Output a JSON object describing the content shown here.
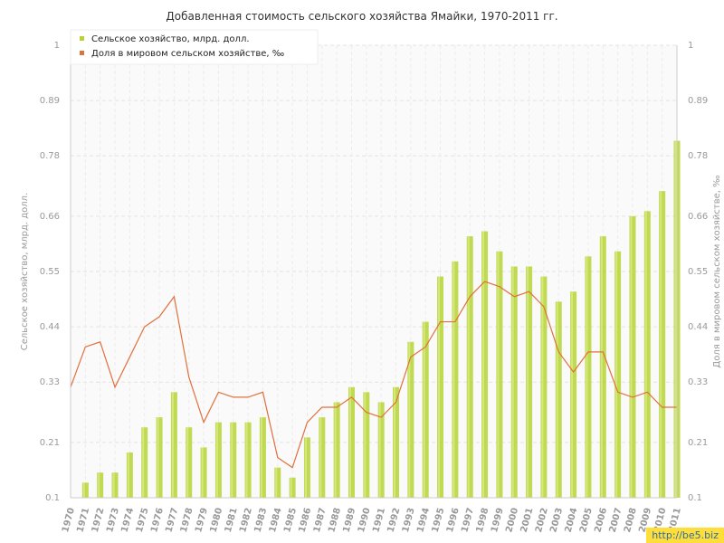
{
  "chart_data": {
    "type": "bar",
    "title": "Добавленная стоимость сельского хозяйства Ямайки, 1970-2011 гг.",
    "ylabel_left": "Сельское хозяйство, млрд. долл.",
    "ylabel_right": "Доля в мировом сельском хозяйстве, ‰",
    "ylim": [
      0.1,
      1
    ],
    "yticks": [
      "0.1",
      "0.21",
      "0.33",
      "0.44",
      "0.55",
      "0.66",
      "0.78",
      "0.89",
      "1"
    ],
    "legend_position": "top-left",
    "grid": true,
    "categories": [
      "1970",
      "1971",
      "1972",
      "1973",
      "1974",
      "1975",
      "1976",
      "1977",
      "1978",
      "1979",
      "1980",
      "1981",
      "1982",
      "1983",
      "1984",
      "1985",
      "1986",
      "1987",
      "1988",
      "1989",
      "1990",
      "1991",
      "1992",
      "1993",
      "1994",
      "1995",
      "1996",
      "1997",
      "1998",
      "1999",
      "2000",
      "2001",
      "2002",
      "2003",
      "2004",
      "2005",
      "2006",
      "2007",
      "2008",
      "2009",
      "2010",
      "2011"
    ],
    "series": [
      {
        "name": "Сельское хозяйство, млрд. долл.",
        "type": "bar",
        "color": "#b5d334",
        "values": [
          0.1,
          0.13,
          0.15,
          0.15,
          0.19,
          0.24,
          0.26,
          0.31,
          0.24,
          0.2,
          0.25,
          0.25,
          0.25,
          0.26,
          0.16,
          0.14,
          0.22,
          0.26,
          0.29,
          0.32,
          0.31,
          0.29,
          0.32,
          0.41,
          0.45,
          0.54,
          0.57,
          0.62,
          0.63,
          0.59,
          0.56,
          0.56,
          0.54,
          0.49,
          0.51,
          0.58,
          0.62,
          0.59,
          0.66,
          0.67,
          0.71,
          0.81
        ]
      },
      {
        "name": "Доля в мировом сельском хозяйстве, ‰",
        "type": "line",
        "color": "#e0703c",
        "values": [
          0.32,
          0.4,
          0.41,
          0.32,
          0.38,
          0.44,
          0.46,
          0.5,
          0.34,
          0.25,
          0.31,
          0.3,
          0.3,
          0.31,
          0.18,
          0.16,
          0.25,
          0.28,
          0.28,
          0.3,
          0.27,
          0.26,
          0.29,
          0.38,
          0.4,
          0.45,
          0.45,
          0.5,
          0.53,
          0.52,
          0.5,
          0.51,
          0.48,
          0.39,
          0.35,
          0.39,
          0.39,
          0.31,
          0.3,
          0.31,
          0.28,
          0.28
        ]
      }
    ]
  },
  "watermark": "http://be5.biz"
}
